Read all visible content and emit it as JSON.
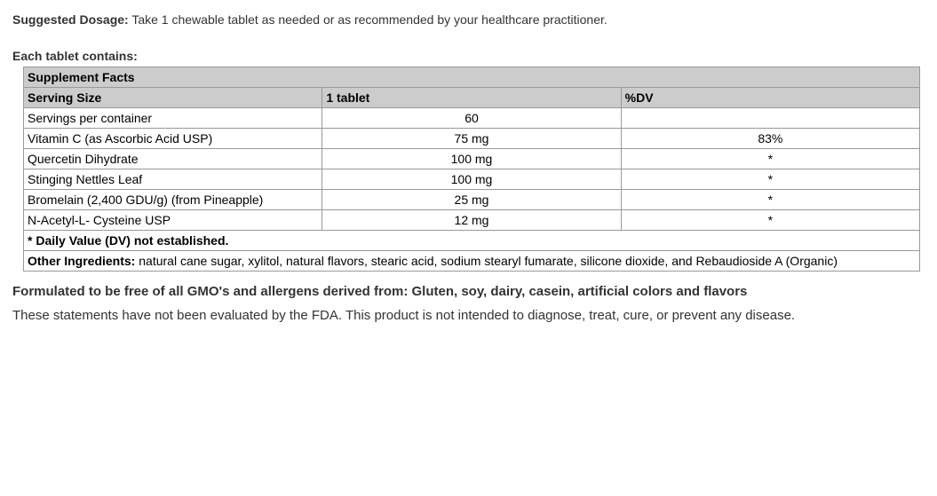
{
  "dosage": {
    "label": "Suggested Dosage:",
    "text": " Take 1 chewable tablet as needed or as recommended by your healthcare practitioner."
  },
  "contains_label": "Each tablet contains:",
  "table": {
    "title": "Supplement Facts",
    "header": {
      "c1": "Serving Size",
      "c2": "1 tablet",
      "c3": "%DV"
    },
    "rows": [
      {
        "name": "Servings per container",
        "amount": "60",
        "dv": ""
      },
      {
        "name": "Vitamin C (as Ascorbic Acid USP)",
        "amount": "75 mg",
        "dv": "83%"
      },
      {
        "name": "Quercetin Dihydrate",
        "amount": "100 mg",
        "dv": "*"
      },
      {
        "name": "Stinging Nettles Leaf",
        "amount": "100 mg",
        "dv": "*"
      },
      {
        "name": "Bromelain (2,400 GDU/g) (from Pineapple)",
        "amount": "25 mg",
        "dv": "*"
      },
      {
        "name": "N-Acetyl-L- Cysteine USP",
        "amount": "12 mg",
        "dv": "*"
      }
    ],
    "dv_footnote": "* Daily Value (DV) not established.",
    "other_label": "Other Ingredients:",
    "other_text": " natural cane sugar, xylitol, natural flavors, stearic acid, sodium stearyl fumarate, silicone dioxide, and Rebaudioside A (Organic)"
  },
  "free_from": "Formulated to be free of all GMO's and allergens derived from: Gluten, soy, dairy, casein, artificial colors and flavors",
  "disclaimer": "These statements have not been evaluated by the FDA. This product is not intended to diagnose, treat, cure, or prevent any disease."
}
